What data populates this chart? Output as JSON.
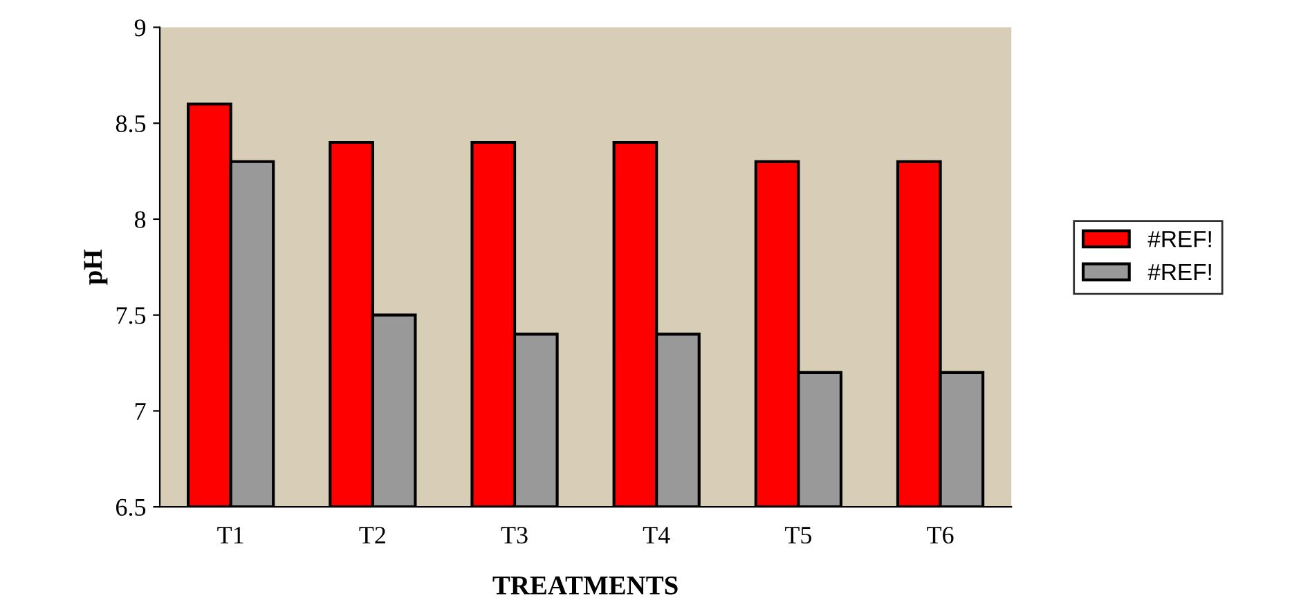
{
  "chart_data": {
    "type": "bar",
    "xlabel": "TREATMENTS",
    "ylabel": "pH",
    "categories": [
      "T1",
      "T2",
      "T3",
      "T4",
      "T5",
      "T6"
    ],
    "series": [
      {
        "name": "#REF!",
        "color": "#ff0000",
        "values": [
          8.6,
          8.4,
          8.4,
          8.4,
          8.3,
          8.3
        ]
      },
      {
        "name": "#REF!",
        "color": "#999999",
        "values": [
          8.3,
          7.5,
          7.4,
          7.4,
          7.2,
          7.2
        ]
      }
    ],
    "ylim": [
      6.5,
      9
    ],
    "yticks": [
      6.5,
      7,
      7.5,
      8,
      8.5,
      9
    ],
    "grid": false,
    "legend": "right"
  }
}
